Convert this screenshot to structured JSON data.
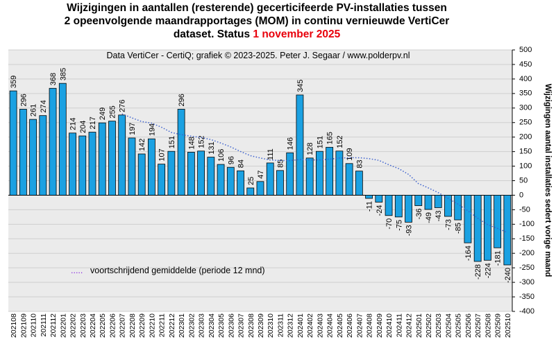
{
  "chart_data": {
    "type": "bar",
    "title": [
      "Wijzigingen  in aantallen (resterende) gecerticifeerde PV-installaties  tussen",
      "2 opeenvolgende maandrapportages (MOM) in continu vernieuwde VertiCer",
      "dataset. Status"
    ],
    "status_date": "1 november 2025",
    "subtitle": "Data VertiCer - CertiQ; grafiek © 2023-2025. Peter J. Segaar / www.polderpv.nl",
    "y_label": "Wijzigingen aantal installaties sedert vorige maand",
    "categories": [
      "202108",
      "202109",
      "202110",
      "202111",
      "202112",
      "202201",
      "202202",
      "202203",
      "202204",
      "202205",
      "202206",
      "202207",
      "202208",
      "202209",
      "202210",
      "202211",
      "202212",
      "202301",
      "202302",
      "202303",
      "202304",
      "202305",
      "202306",
      "202307",
      "202308",
      "202309",
      "202310",
      "202311",
      "202312",
      "202401",
      "202402",
      "202403",
      "202404",
      "202405",
      "202406",
      "202407",
      "202408",
      "202409",
      "202410",
      "202411",
      "202412",
      "202501",
      "202502",
      "202503",
      "202504",
      "202505",
      "202506",
      "202507",
      "202508",
      "202509",
      "202510"
    ],
    "series": [
      {
        "color": "#1ba1e2",
        "values": [
          359,
          296,
          261,
          274,
          368,
          385,
          214,
          204,
          217,
          249,
          255,
          276,
          197,
          142,
          194,
          107,
          151,
          296,
          148,
          152,
          131,
          106,
          96,
          84,
          25,
          47,
          111,
          85,
          146,
          345,
          128,
          151,
          165,
          152,
          109,
          83,
          -11,
          -24,
          -70,
          -75,
          -93,
          -36,
          -49,
          -43,
          -73,
          -85,
          -164,
          -228,
          -224,
          -181,
          -240
        ]
      },
      {
        "type": "line",
        "name": "voortschrijdend  gemiddelde  (periode 12 mnd)",
        "legend_symbol": ".....",
        "color": "#3a5fcd",
        "legend_color": "#8a2be2",
        "values": [
          null,
          null,
          null,
          null,
          null,
          null,
          null,
          null,
          null,
          null,
          null,
          279.8,
          266.3,
          253.5,
          247.9,
          234.0,
          215.9,
          208.5,
          203.0,
          198.7,
          191.5,
          179.6,
          166.3,
          150.3,
          136.0,
          128.1,
          121.2,
          119.3,
          118.9,
          123.0,
          121.3,
          121.3,
          124.1,
          127.9,
          129.0,
          128.9,
          125.9,
          120.0,
          104.9,
          91.6,
          71.7,
          39.9,
          25.2,
          9.0,
          -10.8,
          -30.6,
          -53.3,
          -79.3,
          -101.1,
          -114.2,
          -128.3
        ]
      }
    ],
    "ylim": [
      -400,
      500
    ],
    "yticks": [
      -400,
      -350,
      -300,
      -250,
      -200,
      -150,
      -100,
      -50,
      0,
      50,
      100,
      150,
      200,
      250,
      300,
      350,
      400,
      450,
      500
    ],
    "grid": true
  }
}
